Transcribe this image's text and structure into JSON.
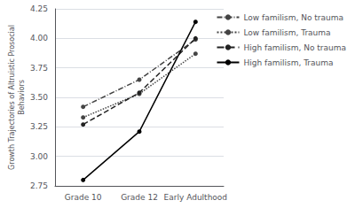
{
  "chart_data": {
    "type": "line",
    "ylabel": "Growth Trajectories of Altruistic Prosocial\nBehaviors",
    "categories": [
      "Grade 10",
      "Grade 12",
      "Early Adulthood"
    ],
    "series": [
      {
        "name": "Low familism, No trauma",
        "color": "#444444",
        "line_style": "dashdot",
        "marker": "circle",
        "values": [
          3.42,
          3.65,
          3.99
        ]
      },
      {
        "name": "Low familism, Trauma",
        "color": "#444444",
        "line_style": "dotted",
        "marker": "circle",
        "values": [
          3.33,
          3.53,
          3.87
        ]
      },
      {
        "name": "High familism, No trauma",
        "color": "#222222",
        "line_style": "dashed",
        "marker": "circle",
        "values": [
          3.27,
          3.54,
          4.0
        ]
      },
      {
        "name": "High familism, Trauma",
        "color": "#000000",
        "line_style": "solid",
        "marker": "circle",
        "values": [
          2.8,
          3.21,
          4.14
        ]
      }
    ],
    "ylim": [
      2.75,
      4.25
    ],
    "yticks": [
      2.75,
      {
        "value": 3,
        "label": "3.00"
      },
      3.25,
      {
        "value": 3.5,
        "label": "3.50"
      },
      3.75,
      {
        "value": 4,
        "label": "4.00"
      },
      4.25
    ],
    "grid": true,
    "legend": "right"
  }
}
